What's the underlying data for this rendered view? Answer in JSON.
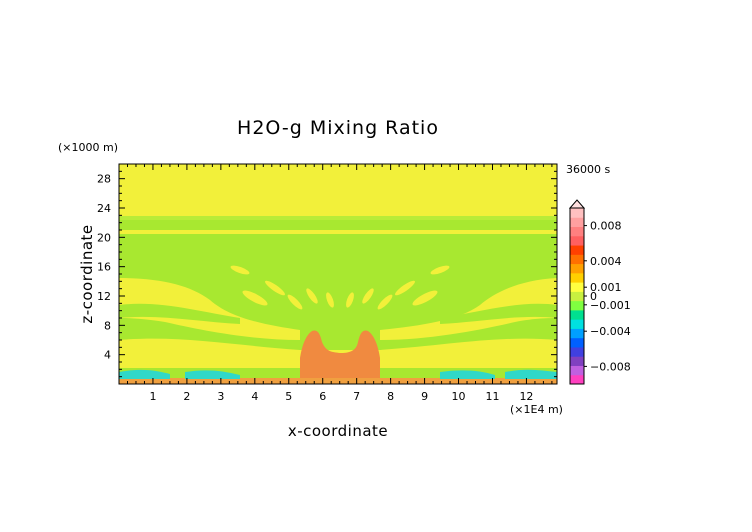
{
  "chart_data": {
    "type": "heatmap",
    "title": "H2O-g Mixing Ratio",
    "xlabel": "x-coordinate",
    "ylabel": "z-coordinate",
    "x_unit": "(×1E4 m)",
    "y_unit": "(×1000 m)",
    "time_label": "36000 s",
    "xlim": [
      0,
      12.9
    ],
    "ylim": [
      0,
      30
    ],
    "x_ticks": [
      1,
      2,
      3,
      4,
      5,
      6,
      7,
      8,
      9,
      10,
      11,
      12
    ],
    "y_ticks": [
      4,
      8,
      12,
      16,
      20,
      24,
      28
    ],
    "colorbar": {
      "range": [
        -0.01,
        0.01
      ],
      "tick_values": [
        0.008,
        0.004,
        0.001,
        0,
        -0.001,
        -0.004,
        -0.008
      ],
      "tick_labels": [
        "0.008",
        "0.004",
        "0.001",
        "0",
        "−0.001",
        "−0.004",
        "−0.008"
      ],
      "colors": [
        "#ff40c0",
        "#c060e0",
        "#8040c0",
        "#4040e0",
        "#0060ff",
        "#00a0ff",
        "#00e0e0",
        "#00e090",
        "#80ff40",
        "#c8f040",
        "#ffff40",
        "#ffd000",
        "#ffa000",
        "#ff7000",
        "#ff4000",
        "#ff6060",
        "#ff8080",
        "#ffa0a0",
        "#ffc0c0"
      ]
    },
    "regions": [
      {
        "category": "near-zero negative",
        "color": "#a8e830",
        "x": [
          0,
          12.9
        ],
        "z": [
          0,
          30
        ]
      },
      {
        "category": "small positive",
        "color": "#f2f03a",
        "x": [
          0,
          12.9
        ],
        "z": [
          23,
          30
        ]
      },
      {
        "category": "moderate positive",
        "color": "#f08a40",
        "x": [
          5.3,
          7.6
        ],
        "z": [
          0.3,
          7.5
        ]
      },
      {
        "category": "negative",
        "color": "#30d8c8",
        "x": [
          0,
          12.9
        ],
        "z": [
          0.2,
          2.0
        ]
      }
    ]
  }
}
